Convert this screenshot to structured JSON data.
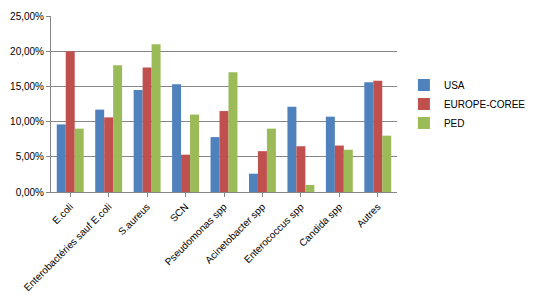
{
  "chart_data": {
    "type": "bar",
    "categories": [
      "E.coli",
      "Enterobactéries sauf E.coli",
      "S.aureus",
      "SCN",
      "Pseudomonas spp",
      "Acinetobacter spp",
      "Enterococcus spp",
      "Candida spp",
      "Autres"
    ],
    "series": [
      {
        "name": "USA",
        "color": "#4f81bd",
        "values": [
          9.6,
          11.7,
          14.5,
          15.3,
          7.8,
          2.6,
          12.1,
          10.7,
          15.6
        ]
      },
      {
        "name": "EUROPE-COREE",
        "color": "#c0504d",
        "values": [
          20.0,
          10.6,
          17.7,
          5.3,
          11.5,
          5.8,
          6.5,
          6.6,
          15.8
        ]
      },
      {
        "name": "PED",
        "color": "#9bbb59",
        "values": [
          9.0,
          18.0,
          21.0,
          11.0,
          17.0,
          9.0,
          1.0,
          6.0,
          8.0
        ]
      }
    ],
    "ylim": [
      0,
      25
    ],
    "yticks": [
      {
        "value": 0,
        "label": "0,00%"
      },
      {
        "value": 5,
        "label": "5,00%"
      },
      {
        "value": 10,
        "label": "10,00%"
      },
      {
        "value": 15,
        "label": "15,00%"
      },
      {
        "value": 20,
        "label": "20,00%"
      },
      {
        "value": 25,
        "label": "25,00%"
      }
    ],
    "grid": true,
    "legend": "right"
  }
}
